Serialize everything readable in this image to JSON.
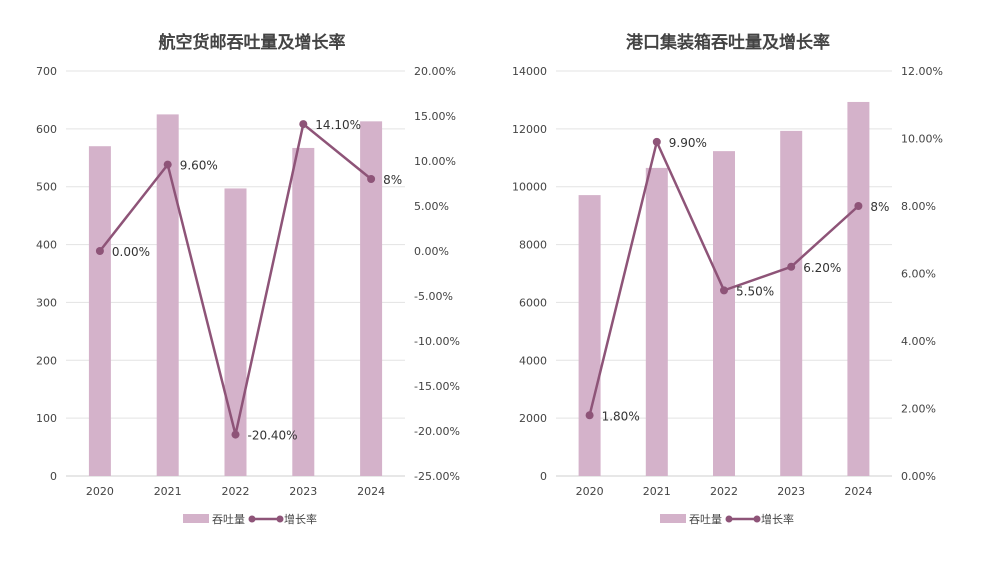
{
  "chart_data": [
    {
      "type": "bar+line",
      "title": "航空货邮吞吐量及增长率",
      "categories": [
        "2020",
        "2021",
        "2022",
        "2023",
        "2024"
      ],
      "series": [
        {
          "name": "吞吐量",
          "type": "bar",
          "axis": "left",
          "values": [
            570,
            625,
            497,
            567,
            613
          ]
        },
        {
          "name": "增长率",
          "type": "line",
          "axis": "right",
          "values": [
            0.0,
            9.6,
            -20.4,
            14.1,
            8.0
          ],
          "labels": [
            "0.00%",
            "9.60%",
            "-20.40%",
            "14.10%",
            "8%"
          ]
        }
      ],
      "ylim_left": [
        0,
        700
      ],
      "yticks_left": [
        "0",
        "100",
        "200",
        "300",
        "400",
        "500",
        "600",
        "700"
      ],
      "ylim_right": [
        -25,
        20
      ],
      "yticks_right": [
        "-25.00%",
        "-20.00%",
        "-15.00%",
        "-10.00%",
        "-5.00%",
        "0.00%",
        "5.00%",
        "10.00%",
        "15.00%",
        "20.00%"
      ],
      "grid": true,
      "legend": "bottom"
    },
    {
      "type": "bar+line",
      "title": "港口集装箱吞吐量及增长率",
      "categories": [
        "2020",
        "2021",
        "2022",
        "2023",
        "2024"
      ],
      "series": [
        {
          "name": "吞吐量",
          "type": "bar",
          "axis": "left",
          "values": [
            9710,
            10650,
            11230,
            11930,
            12930
          ]
        },
        {
          "name": "增长率",
          "type": "line",
          "axis": "right",
          "values": [
            1.8,
            9.9,
            5.5,
            6.2,
            8.0
          ],
          "labels": [
            "1.80%",
            "9.90%",
            "5.50%",
            "6.20%",
            "8%"
          ]
        }
      ],
      "ylim_left": [
        0,
        14000
      ],
      "yticks_left": [
        "0",
        "2000",
        "4000",
        "6000",
        "8000",
        "10000",
        "12000",
        "14000"
      ],
      "ylim_right": [
        0,
        12
      ],
      "yticks_right": [
        "0.00%",
        "2.00%",
        "4.00%",
        "6.00%",
        "8.00%",
        "10.00%",
        "12.00%"
      ],
      "grid": true,
      "legend": "bottom"
    }
  ],
  "colors": {
    "bar": "#d4b2ca",
    "line": "#8e5478",
    "grid": "#e3e3e3",
    "text": "#444444"
  }
}
